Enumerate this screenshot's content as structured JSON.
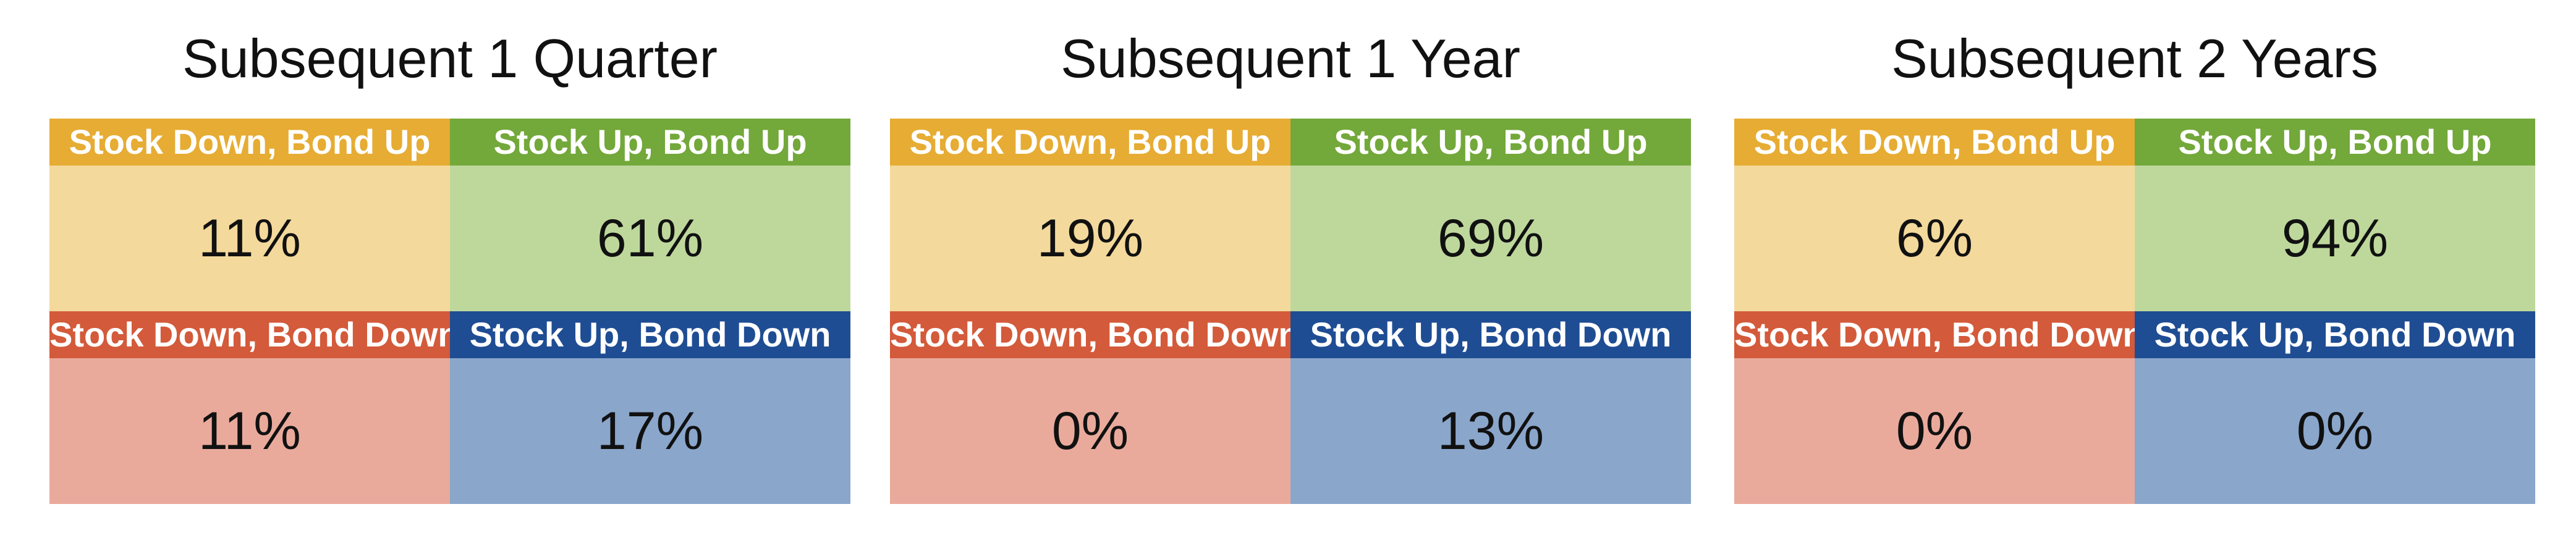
{
  "chart_data": {
    "type": "table",
    "quadrant_order": [
      "stock_down_bond_up",
      "stock_up_bond_up",
      "stock_down_bond_down",
      "stock_up_bond_down"
    ],
    "quadrants": {
      "stock_down_bond_up": {
        "label": "Stock Down, Bond Up",
        "header_color": "#e6ac33",
        "body_color": "#f3d99b"
      },
      "stock_up_bond_up": {
        "label": "Stock Up, Bond Up",
        "header_color": "#73a83a",
        "body_color": "#bed89c"
      },
      "stock_down_bond_down": {
        "label": "Stock Down, Bond Down",
        "header_color": "#d35a3a",
        "body_color": "#e9aa9c"
      },
      "stock_up_bond_down": {
        "label": "Stock Up, Bond Down",
        "header_color": "#1f4d93",
        "body_color": "#8aa6cb"
      }
    },
    "panels": [
      {
        "title": "Subsequent 1 Quarter",
        "values": {
          "stock_down_bond_up": "11%",
          "stock_up_bond_up": "61%",
          "stock_down_bond_down": "11%",
          "stock_up_bond_down": "17%"
        }
      },
      {
        "title": "Subsequent 1 Year",
        "values": {
          "stock_down_bond_up": "19%",
          "stock_up_bond_up": "69%",
          "stock_down_bond_down": "0%",
          "stock_up_bond_down": "13%"
        }
      },
      {
        "title": "Subsequent 2 Years",
        "values": {
          "stock_down_bond_up": "6%",
          "stock_up_bond_up": "94%",
          "stock_down_bond_down": "0%",
          "stock_up_bond_down": "0%"
        }
      }
    ]
  }
}
